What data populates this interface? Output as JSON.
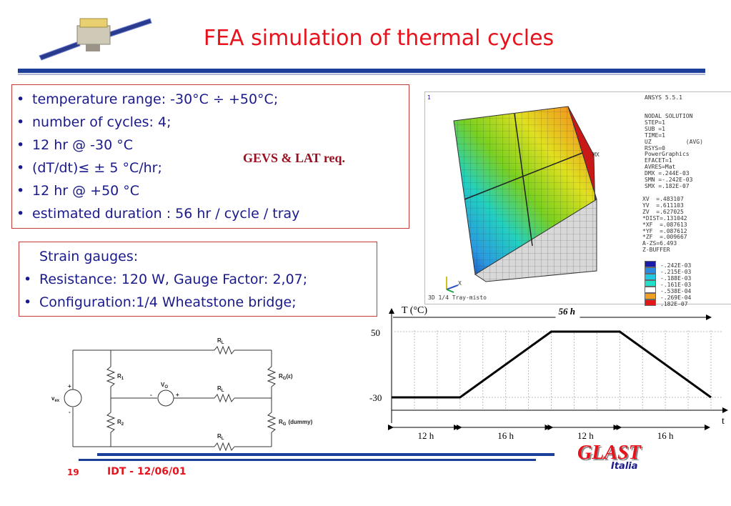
{
  "title": "FEA simulation of thermal cycles",
  "requirements": {
    "bullets": [
      "temperature range: -30°C ÷ +50°C;",
      "number of  cycles: 4;",
      "12 hr @ -30 °C",
      "(dT/dt)≤ ± 5 °C/hr;",
      "12 hr @ +50 °C",
      "estimated duration : 56 hr / cycle / tray"
    ],
    "note": "GEVS & LAT req."
  },
  "strain_gauges": {
    "heading": "Strain gauges:",
    "bullets": [
      "Resistance: 120 W,  Gauge Factor:  2,07;",
      "Configuration:1/4  Wheatstone bridge;"
    ]
  },
  "ansys": {
    "corner_index": "1",
    "version": "ANSYS 5.5.1",
    "solution_lines": [
      "NODAL SOLUTION",
      "STEP=1",
      "SUB =1",
      "TIME=1",
      "UZ          (AVG)",
      "RSYS=0",
      "PowerGraphics",
      "EFACET=1",
      "AVRES=Mat",
      "DMX =.244E-03",
      "SMN =-.242E-03",
      "SMX =.182E-07"
    ],
    "view_lines": [
      "XV  =.483107",
      "YV  =.611103",
      "ZV  =.627025",
      "*DIST=.131042",
      "*XF  =.087613",
      "*YF  =.087612",
      "*ZF  =.009667",
      "A-ZS=6.493",
      "Z-BUFFER"
    ],
    "legend": [
      {
        "color": "#1a1aa8",
        "value": "-.242E-03"
      },
      {
        "color": "#2a8ae0",
        "value": "-.215E-03"
      },
      {
        "color": "#22c8e0",
        "value": "-.188E-03"
      },
      {
        "color": "#22e0c8",
        "value": "-.161E-03"
      },
      {
        "color": "#ffffff",
        "value": "-.538E-04"
      },
      {
        "color": "#f0a020",
        "value": "-.269E-04"
      },
      {
        "color": "#e01818",
        "value": ".182E-07"
      }
    ],
    "mx_label": "MX",
    "axis_x": "X",
    "caption": "3D 1/4 Tray-misto"
  },
  "circuit": {
    "vex": "v",
    "vex_sub": "ex",
    "vo": "V",
    "vo_sub": "O",
    "plus": "+",
    "minus": "-",
    "r1": "R",
    "r1_sub": "1",
    "r2": "R",
    "r2_sub": "2",
    "rl": "R",
    "rl_sub": "L",
    "rg": "R",
    "rg_sub": "G",
    "rg_eps": "(ε)",
    "rg_dummy": "(dummy)"
  },
  "chart_data": {
    "type": "line",
    "ylabel": "T (°C)",
    "xlabel": "t",
    "y_ticks": [
      "50",
      "-30"
    ],
    "x": [
      0,
      12,
      28,
      40,
      56
    ],
    "y": [
      -30,
      -30,
      50,
      50,
      -30
    ],
    "span_label": "56 h",
    "segments": [
      "12 h",
      "16 h",
      "12 h",
      "16 h"
    ],
    "grid": true
  },
  "footer": {
    "page": "19",
    "text": "IDT - 12/06/01",
    "logo": "GLAST",
    "logo_sub": "Italia"
  },
  "colors": {
    "accent": "#e8121c",
    "text": "#1a1a8c",
    "rule": "#1c3f9a"
  }
}
